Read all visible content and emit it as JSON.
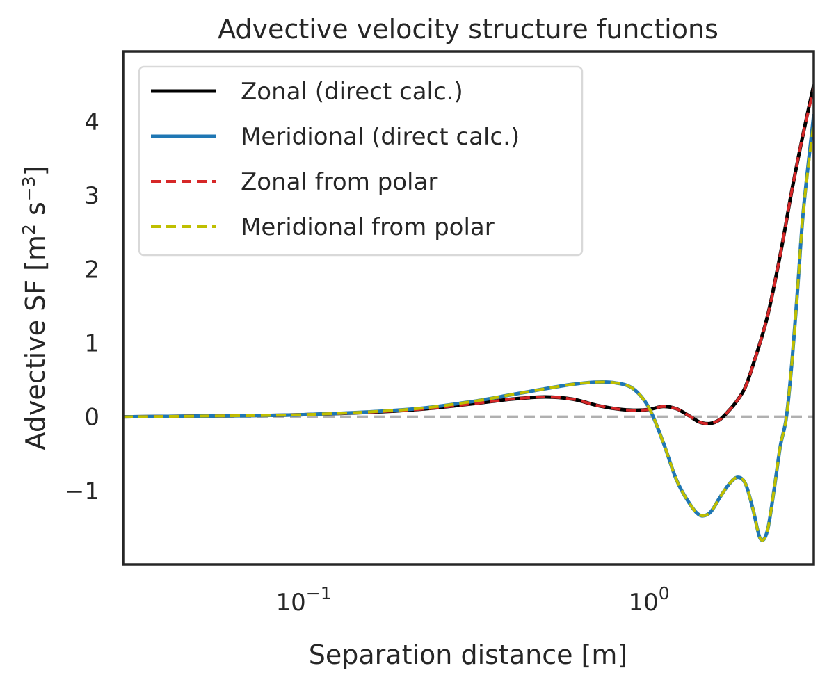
{
  "chart_data": {
    "type": "line",
    "title": "Advective velocity structure functions",
    "xlabel": "Separation distance [m]",
    "ylabel_parts": {
      "main": "Advective SF [m",
      "sup1": "2",
      "mid": " s",
      "sup2": "−3",
      "end": "]"
    },
    "xscale": "log",
    "xlim": [
      0.03,
      3.0
    ],
    "ylim": [
      -2.0,
      4.95
    ],
    "x_ticks": [
      {
        "value": 0.1,
        "base": "10",
        "exp": "−1"
      },
      {
        "value": 1.0,
        "base": "10",
        "exp": "0"
      }
    ],
    "y_ticks": [
      {
        "value": -1,
        "label": "−1"
      },
      {
        "value": 0,
        "label": "0"
      },
      {
        "value": 1,
        "label": "1"
      },
      {
        "value": 2,
        "label": "2"
      },
      {
        "value": 3,
        "label": "3"
      },
      {
        "value": 4,
        "label": "4"
      }
    ],
    "reference_line": {
      "y": 0,
      "color": "#b0b0b0",
      "style": "dashed"
    },
    "grid": false,
    "legend_position": "upper-left",
    "series": [
      {
        "name": "Zonal (direct calc.)",
        "color": "#000000",
        "style": "solid",
        "x": [
          0.03,
          0.05,
          0.1,
          0.2,
          0.3,
          0.4,
          0.5,
          0.6,
          0.7,
          0.8,
          0.9,
          1.0,
          1.1,
          1.2,
          1.3,
          1.4,
          1.5,
          1.6,
          1.7,
          1.8,
          1.9,
          2.0,
          2.2,
          2.4,
          2.6,
          2.8,
          3.0
        ],
        "y": [
          0.0,
          0.01,
          0.03,
          0.09,
          0.17,
          0.24,
          0.27,
          0.24,
          0.16,
          0.11,
          0.09,
          0.1,
          0.14,
          0.11,
          0.02,
          -0.07,
          -0.09,
          -0.04,
          0.08,
          0.22,
          0.4,
          0.7,
          1.35,
          2.2,
          3.1,
          3.85,
          4.5
        ]
      },
      {
        "name": "Meridional (direct calc.)",
        "color": "#1f77b4",
        "style": "solid",
        "x": [
          0.03,
          0.05,
          0.1,
          0.2,
          0.3,
          0.4,
          0.5,
          0.6,
          0.7,
          0.8,
          0.9,
          1.0,
          1.1,
          1.2,
          1.3,
          1.4,
          1.5,
          1.6,
          1.7,
          1.8,
          1.9,
          2.0,
          2.1,
          2.2,
          2.3,
          2.4,
          2.5,
          2.6,
          2.7,
          2.8,
          3.0
        ],
        "y": [
          0.0,
          0.01,
          0.03,
          0.1,
          0.2,
          0.3,
          0.38,
          0.44,
          0.47,
          0.46,
          0.38,
          0.12,
          -0.35,
          -0.85,
          -1.15,
          -1.33,
          -1.3,
          -1.1,
          -0.92,
          -0.82,
          -0.9,
          -1.25,
          -1.65,
          -1.55,
          -1.0,
          -0.4,
          0.0,
          0.8,
          1.8,
          2.8,
          4.1
        ]
      },
      {
        "name": "Zonal from polar",
        "color": "#d62728",
        "style": "dashed",
        "x": [
          0.03,
          0.05,
          0.1,
          0.2,
          0.3,
          0.4,
          0.5,
          0.6,
          0.7,
          0.8,
          0.9,
          1.0,
          1.1,
          1.2,
          1.3,
          1.4,
          1.5,
          1.6,
          1.7,
          1.8,
          1.9,
          2.0,
          2.2,
          2.4,
          2.6,
          2.8,
          3.0
        ],
        "y": [
          0.0,
          0.01,
          0.03,
          0.09,
          0.17,
          0.24,
          0.27,
          0.24,
          0.16,
          0.11,
          0.09,
          0.1,
          0.14,
          0.11,
          0.02,
          -0.07,
          -0.09,
          -0.04,
          0.08,
          0.22,
          0.4,
          0.7,
          1.35,
          2.2,
          3.1,
          3.85,
          4.45
        ]
      },
      {
        "name": "Meridional from polar",
        "color": "#bfbf00",
        "style": "dashed",
        "x": [
          0.03,
          0.05,
          0.1,
          0.2,
          0.3,
          0.4,
          0.5,
          0.6,
          0.7,
          0.8,
          0.9,
          1.0,
          1.1,
          1.2,
          1.3,
          1.4,
          1.5,
          1.6,
          1.7,
          1.8,
          1.9,
          2.0,
          2.1,
          2.2,
          2.3,
          2.4,
          2.5,
          2.6,
          2.7,
          2.8,
          3.0
        ],
        "y": [
          0.0,
          0.01,
          0.03,
          0.1,
          0.2,
          0.3,
          0.38,
          0.44,
          0.47,
          0.46,
          0.38,
          0.12,
          -0.35,
          -0.85,
          -1.15,
          -1.33,
          -1.3,
          -1.1,
          -0.92,
          -0.82,
          -0.9,
          -1.25,
          -1.65,
          -1.55,
          -1.0,
          -0.4,
          0.0,
          0.8,
          1.8,
          2.8,
          4.0
        ]
      }
    ]
  }
}
